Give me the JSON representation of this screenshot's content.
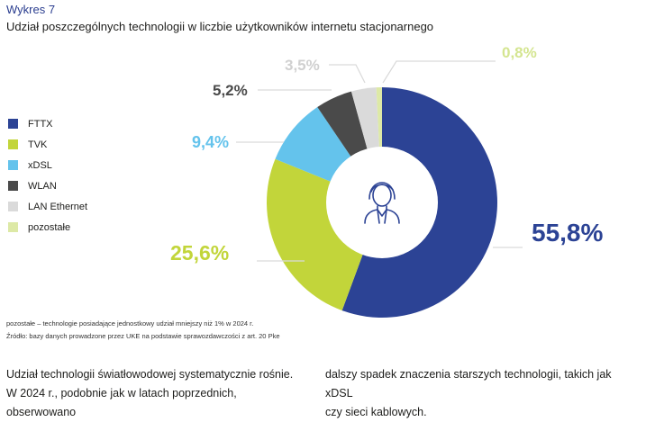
{
  "figure_label": "Wykres 7",
  "title": "Udział poszczególnych technologii w liczbie użytkowników internetu stacjonarnego",
  "chart_data": {
    "type": "pie",
    "title": "Udział poszczególnych technologii w liczbie użytkowników internetu stacjonarnego",
    "donut": true,
    "legend_position": "left",
    "categories": [
      "FTTX",
      "TVK",
      "xDSL",
      "WLAN",
      "LAN Ethernet",
      "pozostałe"
    ],
    "values": [
      55.8,
      25.6,
      9.4,
      5.2,
      3.5,
      0.8
    ],
    "data_labels": [
      "55,8%",
      "25,6%",
      "9,4%",
      "5,2%",
      "3,5%",
      "0,8%"
    ],
    "colors": [
      "#2c4395",
      "#c2d53a",
      "#64c3ec",
      "#4a4a4a",
      "#dadada",
      "#dde9a6"
    ],
    "label_colors": [
      "#2c4395",
      "#c2d53a",
      "#64c3ec",
      "#4a4a4a",
      "#d0d0d0",
      "#d4e590"
    ],
    "center_icon": "person-icon"
  },
  "notes": {
    "note1": "pozostałe – technologie posiadające jednostkowy udział mniejszy niż 1% w 2024 r.",
    "note2": "Źródło: bazy danych prowadzone przez UKE na podstawie sprawozdawczości z art. 20 Pke"
  },
  "body_text": {
    "para1_line1": "Udział technologii światłowodowej systematycznie rośnie.",
    "para1_line2": "W 2024 r., podobnie jak w latach poprzednich, obserwowano",
    "para2_line1": "dalszy spadek znaczenia starszych technologii, takich jak xDSL",
    "para2_line2": "czy sieci kablowych."
  }
}
